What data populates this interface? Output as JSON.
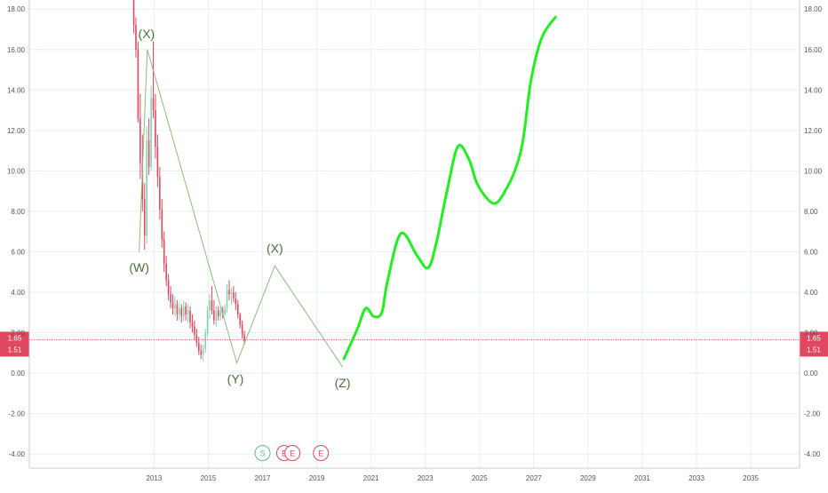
{
  "colors": {
    "background": "#ffffff",
    "grid": "#e9eff3",
    "axis_text": "#555555",
    "candle_up": "#7ed6b3",
    "candle_down": "#e0485f",
    "wave_line": "#8dbb7e",
    "wave_label": "#4b6e3b",
    "projection": "#22ee22",
    "price_line": "#e0485f",
    "marker_split": "#5dc08b",
    "marker_earnings": "#e0485f"
  },
  "chart_data": {
    "type": "line",
    "x_ticks": [
      "2013",
      "2015",
      "2017",
      "2019",
      "2021",
      "2023",
      "2025",
      "2027",
      "2029",
      "2031",
      "2033",
      "2035"
    ],
    "x_tick_values": [
      2013,
      2015,
      2017,
      2019,
      2021,
      2023,
      2025,
      2027,
      2029,
      2031,
      2033,
      2035
    ],
    "xlim": [
      2008.4,
      2036.8
    ],
    "y_ticks": [
      "18.00",
      "16.00",
      "14.00",
      "12.00",
      "10.00",
      "8.00",
      "6.00",
      "4.00",
      "2.00",
      "0.00",
      "-2.00",
      "-4.00"
    ],
    "y_tick_values": [
      18,
      16,
      14,
      12,
      10,
      8,
      6,
      4,
      2,
      0,
      -2,
      -4
    ],
    "ylim": [
      -4.7,
      18.45
    ],
    "grid": true,
    "price_labels": [
      {
        "text": "1.65",
        "value": 1.65
      },
      {
        "text": "1.51",
        "value": 1.51
      }
    ],
    "candles": {
      "x_start": 2012.25,
      "x_step": 0.08,
      "ohlc": [
        [
          18.6,
          19.0,
          16.8,
          17.2
        ],
        [
          17.2,
          17.6,
          15.6,
          16.0
        ],
        [
          16.0,
          16.4,
          12.4,
          12.6
        ],
        [
          12.6,
          13.8,
          9.6,
          10.4
        ],
        [
          10.4,
          11.8,
          8.0,
          8.6
        ],
        [
          8.6,
          9.4,
          6.1,
          6.8
        ],
        [
          6.8,
          12.2,
          6.4,
          11.5
        ],
        [
          11.5,
          12.6,
          9.8,
          10.2
        ],
        [
          10.2,
          14.2,
          10.0,
          13.6
        ],
        [
          13.6,
          16.4,
          12.6,
          13.0
        ],
        [
          13.0,
          13.8,
          10.6,
          11.2
        ],
        [
          11.2,
          11.8,
          9.2,
          9.7
        ],
        [
          9.7,
          10.2,
          7.6,
          8.1
        ],
        [
          8.1,
          8.6,
          6.2,
          6.6
        ],
        [
          6.6,
          7.0,
          5.0,
          5.4
        ],
        [
          5.4,
          5.8,
          4.3,
          4.6
        ],
        [
          4.6,
          4.9,
          3.6,
          3.9
        ],
        [
          3.9,
          4.3,
          3.2,
          3.5
        ],
        [
          3.5,
          3.9,
          2.9,
          3.2
        ],
        [
          3.2,
          3.8,
          2.8,
          3.4
        ],
        [
          3.4,
          3.6,
          2.6,
          2.9
        ],
        [
          2.9,
          3.5,
          2.6,
          3.2
        ],
        [
          3.2,
          3.4,
          2.5,
          2.8
        ],
        [
          2.8,
          3.6,
          2.6,
          3.3
        ],
        [
          3.3,
          3.5,
          2.6,
          2.9
        ],
        [
          2.9,
          3.4,
          2.5,
          3.1
        ],
        [
          3.1,
          3.3,
          2.2,
          2.5
        ],
        [
          2.5,
          2.9,
          2.0,
          2.3
        ],
        [
          2.3,
          2.6,
          1.6,
          1.9
        ],
        [
          1.9,
          2.2,
          1.3,
          1.5
        ],
        [
          1.5,
          1.8,
          0.9,
          1.1
        ],
        [
          1.1,
          1.4,
          0.7,
          0.9
        ],
        [
          0.9,
          1.4,
          0.6,
          1.2
        ],
        [
          1.2,
          2.2,
          1.0,
          2.0
        ],
        [
          2.0,
          3.3,
          1.8,
          3.1
        ],
        [
          3.1,
          3.9,
          2.7,
          3.6
        ],
        [
          3.6,
          4.3,
          2.9,
          3.1
        ],
        [
          3.1,
          3.6,
          2.4,
          2.6
        ],
        [
          2.6,
          3.3,
          2.3,
          3.1
        ],
        [
          3.1,
          3.3,
          2.6,
          2.8
        ],
        [
          2.8,
          3.3,
          2.6,
          3.1
        ],
        [
          3.1,
          3.3,
          2.7,
          2.9
        ],
        [
          2.9,
          3.4,
          2.8,
          3.2
        ],
        [
          3.2,
          4.4,
          3.0,
          4.1
        ],
        [
          4.1,
          4.6,
          3.6,
          3.9
        ],
        [
          3.9,
          4.2,
          3.4,
          4.0
        ],
        [
          4.0,
          4.3,
          3.5,
          3.7
        ],
        [
          3.7,
          4.0,
          3.1,
          3.4
        ],
        [
          3.4,
          3.6,
          2.7,
          2.9
        ],
        [
          2.9,
          3.0,
          2.2,
          2.4
        ],
        [
          2.4,
          2.6,
          1.7,
          1.9
        ],
        [
          1.9,
          2.1,
          1.4,
          1.6
        ]
      ]
    },
    "wave_path": {
      "x": [
        2012.45,
        2012.75,
        2016.05,
        2017.45,
        2019.95
      ],
      "y": [
        6.0,
        16.0,
        0.5,
        5.3,
        0.3
      ]
    },
    "wave_labels": [
      {
        "text": "(W)",
        "x": 2012.45,
        "y": 5.7,
        "anchor": "below"
      },
      {
        "text": "(X)",
        "x": 2012.72,
        "y": 16.2,
        "anchor": "above"
      },
      {
        "text": "(Y)",
        "x": 2016.0,
        "y": 0.2,
        "anchor": "below"
      },
      {
        "text": "(X)",
        "x": 2017.45,
        "y": 5.6,
        "anchor": "above"
      },
      {
        "text": "(Z)",
        "x": 2019.95,
        "y": 0.0,
        "anchor": "below"
      }
    ],
    "projection": {
      "x": [
        2020.0,
        2020.5,
        2020.8,
        2021.1,
        2021.4,
        2021.6,
        2022.1,
        2022.7,
        2023.1,
        2023.4,
        2023.8,
        2024.2,
        2024.6,
        2024.9,
        2025.3,
        2025.6,
        2025.9,
        2026.3,
        2026.6,
        2026.9,
        2027.3,
        2027.8
      ],
      "y": [
        0.7,
        2.2,
        3.2,
        2.8,
        3.0,
        4.5,
        6.9,
        5.8,
        5.2,
        6.4,
        9.0,
        11.2,
        10.6,
        9.4,
        8.6,
        8.4,
        8.9,
        10.0,
        11.5,
        14.5,
        16.6,
        17.6
      ]
    },
    "markers": [
      {
        "text": "S",
        "x": 2017.0,
        "kind": "split"
      },
      {
        "text": "E",
        "x": 2017.8,
        "kind": "earnings"
      },
      {
        "text": "E",
        "x": 2018.1,
        "kind": "earnings"
      },
      {
        "text": "E",
        "x": 2019.15,
        "kind": "earnings"
      }
    ]
  }
}
